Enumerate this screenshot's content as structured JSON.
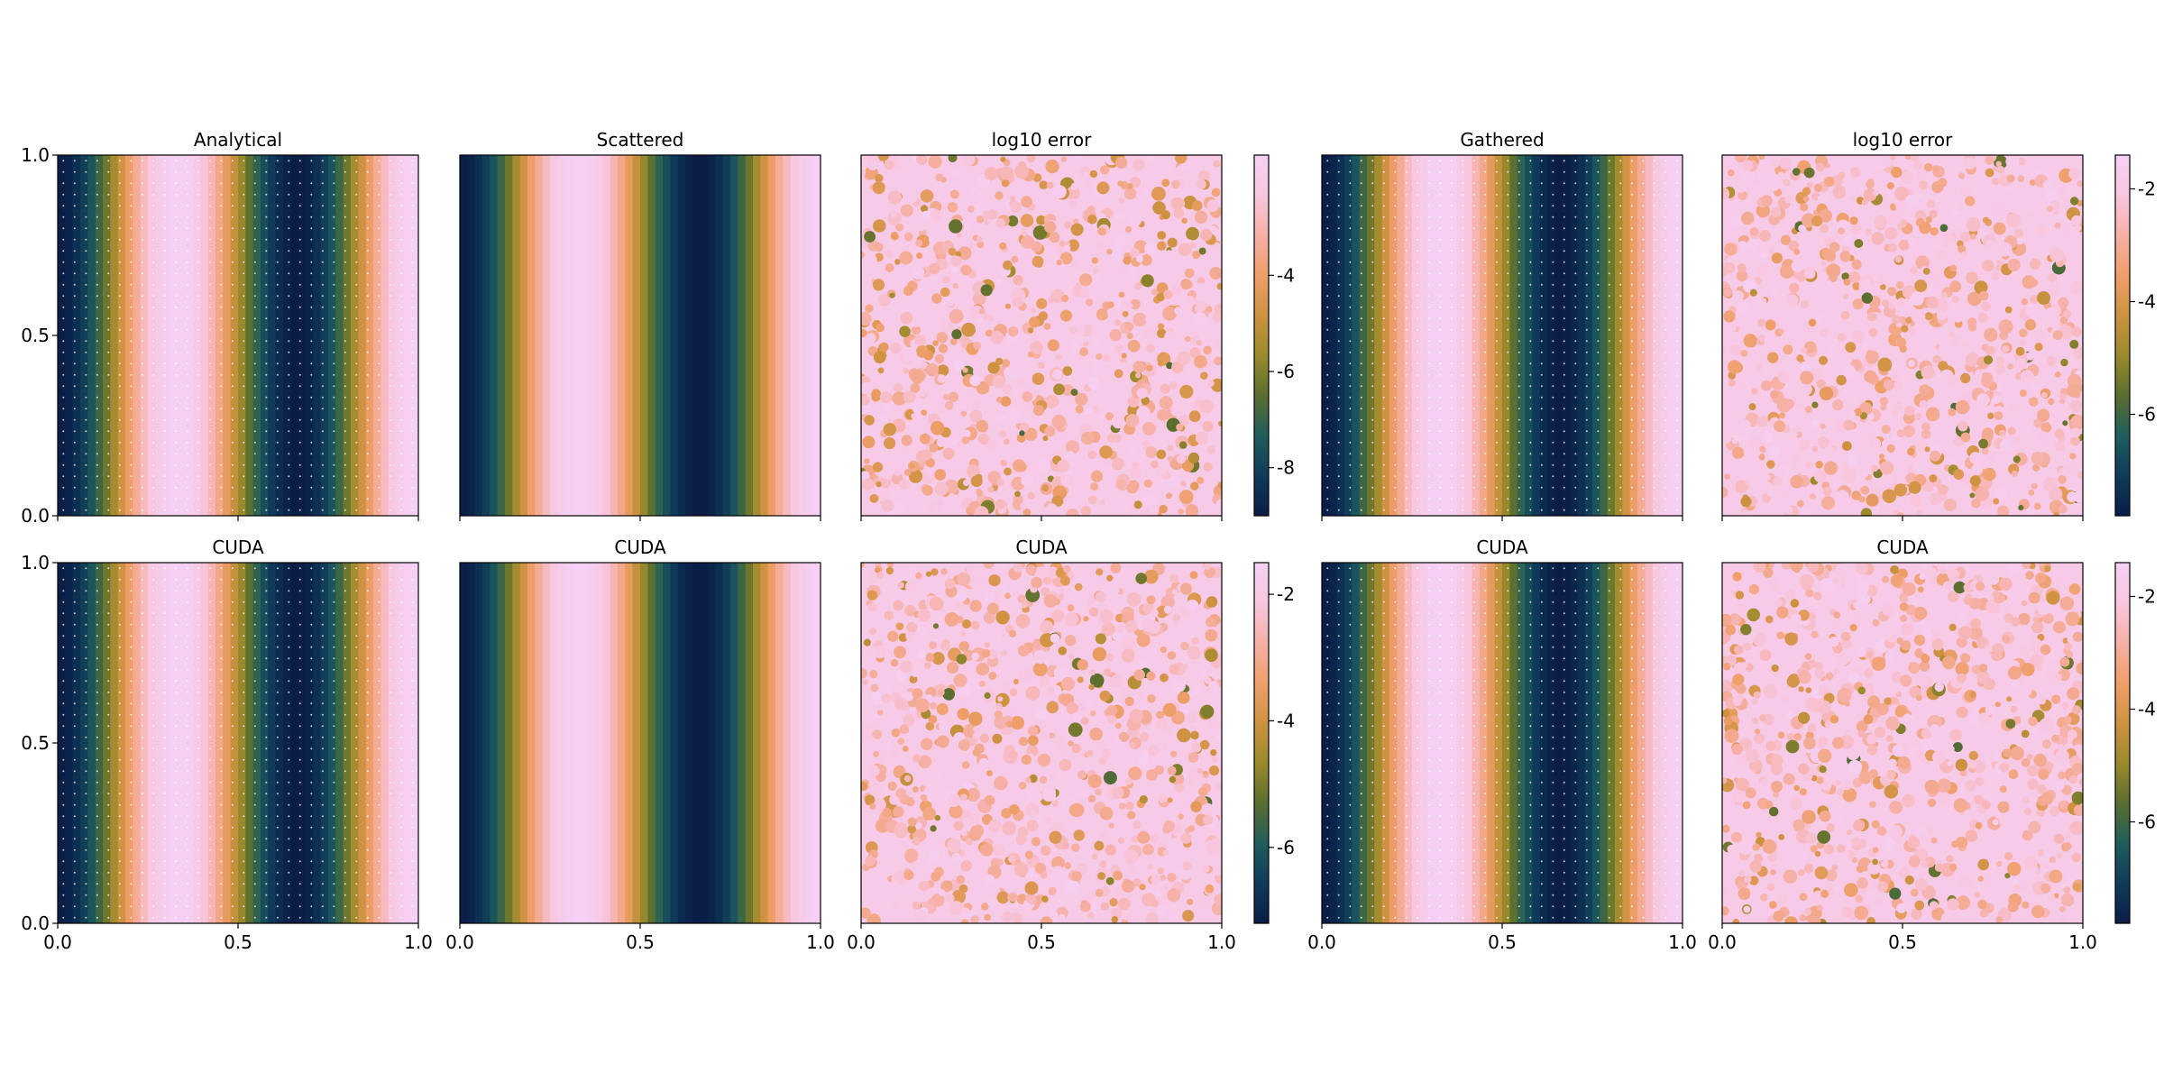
{
  "chart_data": [
    {
      "type": "heatmap",
      "id": "p_r1c1",
      "title": "Analytical",
      "field": "wave",
      "phase": 0.0,
      "xlim": [
        0,
        1
      ],
      "ylim": [
        0,
        1
      ],
      "xticks": [
        "0.0",
        "0.5",
        "1.0"
      ],
      "yticks": [
        "0.0",
        "0.5",
        "1.0"
      ],
      "show_xticks": false,
      "show_yticks": true,
      "dots": true
    },
    {
      "type": "heatmap",
      "id": "p_r1c2",
      "title": "Scattered",
      "field": "wave",
      "phase": 0.0,
      "xlim": [
        0,
        1
      ],
      "ylim": [
        0,
        1
      ],
      "xticks": [
        "0.0",
        "0.5",
        "1.0"
      ],
      "show_xticks": false,
      "show_yticks": false,
      "dots": false
    },
    {
      "type": "heatmap",
      "id": "p_r1c3",
      "title": "log10 error",
      "field": "error",
      "xlim": [
        0,
        1
      ],
      "ylim": [
        0,
        1
      ],
      "xticks": [
        "0.0",
        "0.5",
        "1.0"
      ],
      "show_xticks": false,
      "show_yticks": false,
      "colorbar": {
        "ticks": [
          "-4",
          "-6",
          "-8"
        ],
        "tick_values": [
          -4,
          -6,
          -8
        ],
        "range": [
          -9,
          -1.5
        ]
      }
    },
    {
      "type": "heatmap",
      "id": "p_r1c4",
      "title": "Gathered",
      "field": "wave",
      "phase": 0.0,
      "xlim": [
        0,
        1
      ],
      "ylim": [
        0,
        1
      ],
      "xticks": [
        "0.0",
        "0.5",
        "1.0"
      ],
      "show_xticks": false,
      "show_yticks": false,
      "dots": true
    },
    {
      "type": "heatmap",
      "id": "p_r1c5",
      "title": "log10 error",
      "field": "error",
      "xlim": [
        0,
        1
      ],
      "ylim": [
        0,
        1
      ],
      "xticks": [
        "0.0",
        "0.5",
        "1.0"
      ],
      "show_xticks": false,
      "show_yticks": false,
      "colorbar": {
        "ticks": [
          "-2",
          "-4",
          "-6"
        ],
        "tick_values": [
          -2,
          -4,
          -6
        ],
        "range": [
          -7.8,
          -1.4
        ]
      }
    },
    {
      "type": "heatmap",
      "id": "p_r2c1",
      "title": "CUDA",
      "field": "wave",
      "phase": 0.0,
      "xlim": [
        0,
        1
      ],
      "ylim": [
        0,
        1
      ],
      "xticks": [
        "0.0",
        "0.5",
        "1.0"
      ],
      "yticks": [
        "0.0",
        "0.5",
        "1.0"
      ],
      "show_xticks": true,
      "show_yticks": true,
      "dots": true
    },
    {
      "type": "heatmap",
      "id": "p_r2c2",
      "title": "CUDA",
      "field": "wave",
      "phase": 0.0,
      "xlim": [
        0,
        1
      ],
      "ylim": [
        0,
        1
      ],
      "xticks": [
        "0.0",
        "0.5",
        "1.0"
      ],
      "show_xticks": true,
      "show_yticks": false,
      "dots": false
    },
    {
      "type": "heatmap",
      "id": "p_r2c3",
      "title": "CUDA",
      "field": "error",
      "xlim": [
        0,
        1
      ],
      "ylim": [
        0,
        1
      ],
      "xticks": [
        "0.0",
        "0.5",
        "1.0"
      ],
      "show_xticks": true,
      "show_yticks": false,
      "colorbar": {
        "ticks": [
          "-2",
          "-4",
          "-6"
        ],
        "tick_values": [
          -2,
          -4,
          -6
        ],
        "range": [
          -7.2,
          -1.5
        ]
      }
    },
    {
      "type": "heatmap",
      "id": "p_r2c4",
      "title": "CUDA",
      "field": "wave",
      "phase": 0.0,
      "xlim": [
        0,
        1
      ],
      "ylim": [
        0,
        1
      ],
      "xticks": [
        "0.0",
        "0.5",
        "1.0"
      ],
      "show_xticks": true,
      "show_yticks": false,
      "dots": true
    },
    {
      "type": "heatmap",
      "id": "p_r2c5",
      "title": "CUDA",
      "field": "error",
      "xlim": [
        0,
        1
      ],
      "ylim": [
        0,
        1
      ],
      "xticks": [
        "0.0",
        "0.5",
        "1.0"
      ],
      "show_xticks": true,
      "show_yticks": false,
      "colorbar": {
        "ticks": [
          "-2",
          "-4",
          "-6"
        ],
        "tick_values": [
          -2,
          -4,
          -6
        ],
        "range": [
          -7.8,
          -1.4
        ]
      }
    }
  ],
  "colormap": [
    "#0a1d47",
    "#0f3b5a",
    "#1f5e5d",
    "#5a6e2f",
    "#9b8a2c",
    "#cd9240",
    "#ef9f6a",
    "#f6b0a6",
    "#f8c6df",
    "#f6d0f4"
  ]
}
